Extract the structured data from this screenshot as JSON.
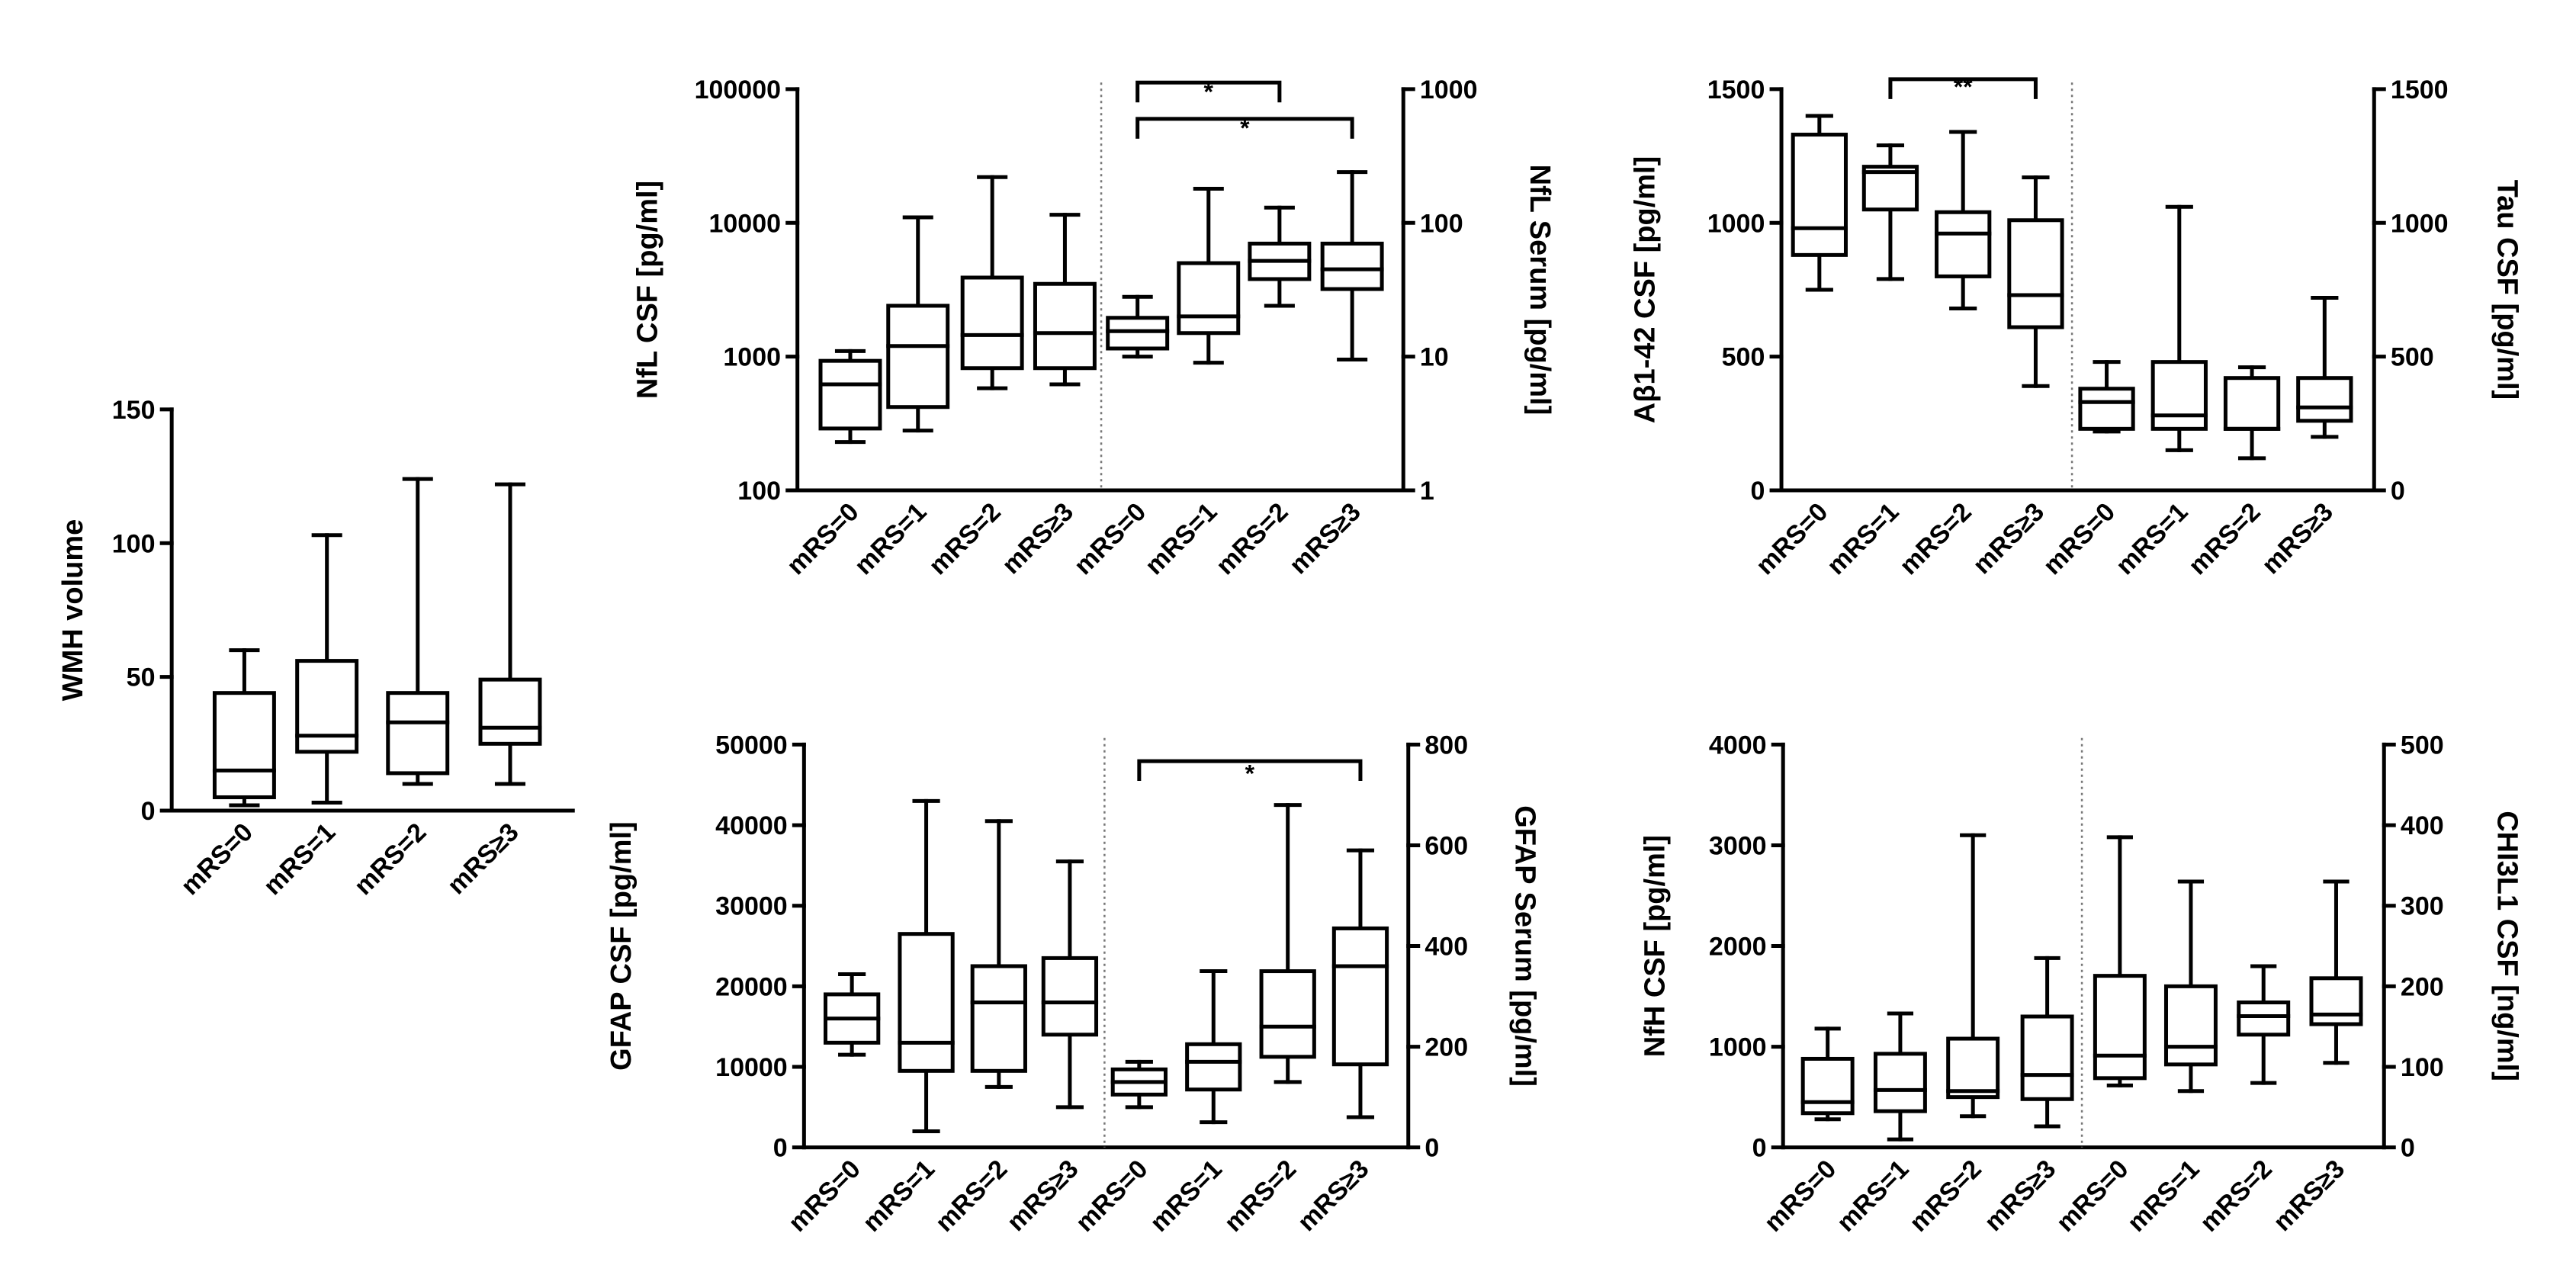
{
  "chart_data": [
    {
      "id": "wmh",
      "type": "boxplot",
      "categories": [
        "mRS=0",
        "mRS=1",
        "mRS=2",
        "mRS≥3"
      ],
      "ylabel": "WMH volume",
      "yscale": "linear",
      "ylim": [
        0,
        150
      ],
      "yticks": [
        0,
        50,
        100,
        150
      ],
      "ytick_labels": [
        "0",
        "50",
        "100",
        "150"
      ],
      "boxes": [
        {
          "min": 2,
          "q1": 5,
          "median": 15,
          "q3": 44,
          "max": 60
        },
        {
          "min": 3,
          "q1": 22,
          "median": 28,
          "q3": 56,
          "max": 103
        },
        {
          "min": 10,
          "q1": 14,
          "median": 33,
          "q3": 44,
          "max": 124
        },
        {
          "min": 10,
          "q1": 25,
          "median": 31,
          "q3": 49,
          "max": 122
        }
      ]
    },
    {
      "id": "nfl",
      "type": "boxplot",
      "categories": [
        "mRS=0",
        "mRS=1",
        "mRS=2",
        "mRS≥3",
        "mRS=0",
        "mRS=1",
        "mRS=2",
        "mRS≥3"
      ],
      "ylabel": "NfL CSF [pg/ml]",
      "yscale": "log",
      "ylim": [
        100,
        100000
      ],
      "yticks": [
        100,
        1000,
        10000,
        100000
      ],
      "ytick_labels": [
        "100",
        "1000",
        "10000",
        "100000"
      ],
      "y2label": "NfL Serum [pg/ml]",
      "y2lim": [
        1,
        1000
      ],
      "y2ticks": [
        1,
        10,
        100,
        1000
      ],
      "y2tick_labels": [
        "1",
        "10",
        "100",
        "1000"
      ],
      "split_after": 4,
      "boxes": [
        {
          "min": 230,
          "q1": 290,
          "median": 620,
          "q3": 930,
          "max": 1100
        },
        {
          "min": 280,
          "q1": 420,
          "median": 1200,
          "q3": 2400,
          "max": 11000
        },
        {
          "min": 580,
          "q1": 820,
          "median": 1450,
          "q3": 3900,
          "max": 22000
        },
        {
          "min": 620,
          "q1": 820,
          "median": 1500,
          "q3": 3500,
          "max": 11500
        },
        {
          "min": 10,
          "q1": 11.5,
          "median": 15.5,
          "q3": 19.5,
          "max": 28,
          "axis": "y2"
        },
        {
          "min": 9,
          "q1": 15,
          "median": 20,
          "q3": 50,
          "max": 180,
          "axis": "y2"
        },
        {
          "min": 24,
          "q1": 38,
          "median": 52,
          "q3": 70,
          "max": 130,
          "axis": "y2"
        },
        {
          "min": 9.5,
          "q1": 32,
          "median": 45,
          "q3": 70,
          "max": 240,
          "axis": "y2"
        }
      ],
      "significance": [
        {
          "from": 5,
          "to": 7,
          "label": "*"
        },
        {
          "from": 5,
          "to": 8,
          "label": "*"
        }
      ]
    },
    {
      "id": "abeta",
      "type": "boxplot",
      "categories": [
        "mRS=0",
        "mRS=1",
        "mRS=2",
        "mRS≥3",
        "mRS=0",
        "mRS=1",
        "mRS=2",
        "mRS≥3"
      ],
      "ylabel": "Aβ1-42 CSF [pg/ml]",
      "yscale": "linear",
      "ylim": [
        0,
        1500
      ],
      "yticks": [
        0,
        500,
        1000,
        1500
      ],
      "ytick_labels": [
        "0",
        "500",
        "1000",
        "1500"
      ],
      "y2label": "Tau CSF [pg/ml]",
      "y2lim": [
        0,
        1500
      ],
      "y2ticks": [
        0,
        500,
        1000,
        1500
      ],
      "y2tick_labels": [
        "0",
        "500",
        "1000",
        "1500"
      ],
      "split_after": 4,
      "boxes": [
        {
          "min": 750,
          "q1": 880,
          "median": 980,
          "q3": 1330,
          "max": 1400
        },
        {
          "min": 790,
          "q1": 1050,
          "median": 1190,
          "q3": 1210,
          "max": 1290
        },
        {
          "min": 680,
          "q1": 800,
          "median": 960,
          "q3": 1040,
          "max": 1340
        },
        {
          "min": 390,
          "q1": 610,
          "median": 730,
          "q3": 1010,
          "max": 1170
        },
        {
          "min": 220,
          "q1": 230,
          "median": 330,
          "q3": 380,
          "max": 480,
          "axis": "y2"
        },
        {
          "min": 150,
          "q1": 230,
          "median": 280,
          "q3": 480,
          "max": 1060,
          "axis": "y2"
        },
        {
          "min": 120,
          "q1": 230,
          "median": 230,
          "q3": 420,
          "max": 460,
          "axis": "y2"
        },
        {
          "min": 200,
          "q1": 260,
          "median": 310,
          "q3": 420,
          "max": 720,
          "axis": "y2"
        }
      ],
      "significance": [
        {
          "from": 2,
          "to": 4,
          "label": "**"
        }
      ]
    },
    {
      "id": "gfap",
      "type": "boxplot",
      "categories": [
        "mRS=0",
        "mRS=1",
        "mRS=2",
        "mRS≥3",
        "mRS=0",
        "mRS=1",
        "mRS=2",
        "mRS≥3"
      ],
      "ylabel": "GFAP CSF [pg/ml]",
      "yscale": "linear",
      "ylim": [
        0,
        50000
      ],
      "yticks": [
        0,
        10000,
        20000,
        30000,
        40000,
        50000
      ],
      "ytick_labels": [
        "0",
        "10000",
        "20000",
        "30000",
        "40000",
        "50000"
      ],
      "y2label": "GFAP Serum [pg/ml]",
      "y2lim": [
        0,
        800
      ],
      "y2ticks": [
        0,
        200,
        400,
        600,
        800
      ],
      "y2tick_labels": [
        "0",
        "200",
        "400",
        "600",
        "800"
      ],
      "split_after": 4,
      "boxes": [
        {
          "min": 11500,
          "q1": 13000,
          "median": 16000,
          "q3": 19000,
          "max": 21500
        },
        {
          "min": 2000,
          "q1": 9500,
          "median": 13000,
          "q3": 26500,
          "max": 43000
        },
        {
          "min": 7500,
          "q1": 9500,
          "median": 18000,
          "q3": 22500,
          "max": 40500
        },
        {
          "min": 5000,
          "q1": 14000,
          "median": 18000,
          "q3": 23500,
          "max": 35500
        },
        {
          "min": 80,
          "q1": 105,
          "median": 130,
          "q3": 155,
          "max": 170,
          "axis": "y2"
        },
        {
          "min": 50,
          "q1": 115,
          "median": 170,
          "q3": 205,
          "max": 350,
          "axis": "y2"
        },
        {
          "min": 130,
          "q1": 180,
          "median": 240,
          "q3": 350,
          "max": 680,
          "axis": "y2"
        },
        {
          "min": 60,
          "q1": 165,
          "median": 360,
          "q3": 435,
          "max": 590,
          "axis": "y2"
        }
      ],
      "significance": [
        {
          "from": 5,
          "to": 8,
          "label": "*"
        }
      ]
    },
    {
      "id": "nfh",
      "type": "boxplot",
      "categories": [
        "mRS=0",
        "mRS=1",
        "mRS=2",
        "mRS≥3",
        "mRS=0",
        "mRS=1",
        "mRS=2",
        "mRS≥3"
      ],
      "ylabel": "NfH CSF [pg/ml]",
      "yscale": "linear",
      "ylim": [
        0,
        4000
      ],
      "yticks": [
        0,
        1000,
        2000,
        3000,
        4000
      ],
      "ytick_labels": [
        "0",
        "1000",
        "2000",
        "3000",
        "4000"
      ],
      "y2label": "CHI3L1 CSF [ng/ml]",
      "y2lim": [
        0,
        500
      ],
      "y2ticks": [
        0,
        100,
        200,
        300,
        400,
        500
      ],
      "y2tick_labels": [
        "0",
        "100",
        "200",
        "300",
        "400",
        "500"
      ],
      "split_after": 4,
      "boxes": [
        {
          "min": 280,
          "q1": 340,
          "median": 450,
          "q3": 880,
          "max": 1180
        },
        {
          "min": 80,
          "q1": 360,
          "median": 570,
          "q3": 930,
          "max": 1330
        },
        {
          "min": 310,
          "q1": 500,
          "median": 560,
          "q3": 1080,
          "max": 3100
        },
        {
          "min": 210,
          "q1": 480,
          "median": 720,
          "q3": 1300,
          "max": 1880
        },
        {
          "min": 77,
          "q1": 86,
          "median": 114,
          "q3": 213,
          "max": 385,
          "axis": "y2"
        },
        {
          "min": 70,
          "q1": 103,
          "median": 125,
          "q3": 200,
          "max": 330,
          "axis": "y2"
        },
        {
          "min": 80,
          "q1": 140,
          "median": 163,
          "q3": 180,
          "max": 225,
          "axis": "y2"
        },
        {
          "min": 105,
          "q1": 153,
          "median": 165,
          "q3": 210,
          "max": 330,
          "axis": "y2"
        }
      ]
    }
  ]
}
